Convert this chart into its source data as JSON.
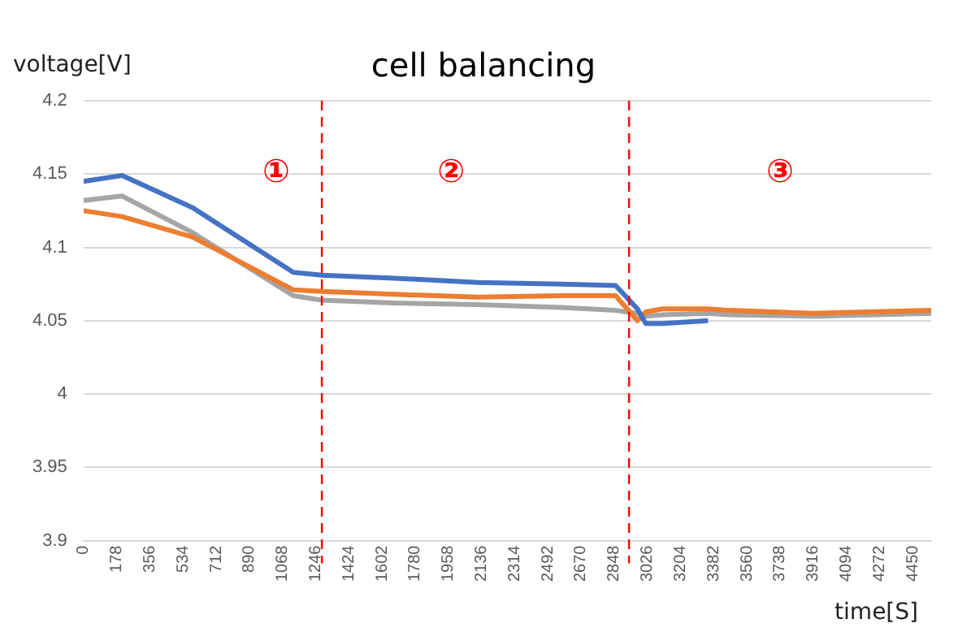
{
  "chart_data": {
    "type": "line",
    "title": "cell balancing",
    "xlabel": "time[S]",
    "ylabel": "voltage[V]",
    "x": [
      0,
      207,
      586,
      1126,
      1279,
      1667,
      2117,
      2568,
      2856,
      2973,
      3018,
      3108,
      3352,
      3469,
      3919,
      4550
    ],
    "series": [
      {
        "color": "#4472c4",
        "values": [
          4.145,
          4.149,
          4.127,
          4.083,
          4.081,
          4.079,
          4.076,
          4.075,
          4.074,
          4.058,
          4.048,
          4.048,
          4.05,
          null,
          null,
          null
        ]
      },
      {
        "color": "#ed7d31",
        "values": [
          4.125,
          4.121,
          4.107,
          4.071,
          4.07,
          4.068,
          4.066,
          4.067,
          4.067,
          4.05,
          4.056,
          4.058,
          4.058,
          4.057,
          4.055,
          4.057
        ]
      },
      {
        "color": "#a5a5a5",
        "values": [
          4.132,
          4.135,
          4.11,
          4.067,
          4.064,
          4.062,
          4.061,
          4.059,
          4.057,
          4.055,
          4.053,
          4.054,
          4.055,
          4.054,
          4.053,
          4.055
        ]
      }
    ],
    "xlim": [
      0,
      4550
    ],
    "xticks": [
      0,
      178,
      356,
      534,
      712,
      890,
      1068,
      1246,
      1424,
      1602,
      1780,
      1958,
      2136,
      2314,
      2492,
      2670,
      2848,
      3026,
      3204,
      3382,
      3560,
      3738,
      3916,
      4094,
      4272,
      4450
    ],
    "ylim": [
      3.9,
      4.2
    ],
    "yticks": [
      {
        "value": 3.9,
        "label": "3.9"
      },
      {
        "value": 3.95,
        "label": "3.95"
      },
      {
        "value": 4,
        "label": "4"
      },
      {
        "value": 4.05,
        "label": "4.05"
      },
      {
        "value": 4.1,
        "label": "4.1"
      },
      {
        "value": 4.15,
        "label": "4.15"
      },
      {
        "value": 4.2,
        "label": "4.2"
      }
    ],
    "ref_lines": [
      {
        "axis": "x",
        "value": 1279,
        "color": "#ff0000",
        "line_style": "dashed"
      },
      {
        "axis": "x",
        "value": 2928,
        "color": "#ff0000",
        "line_style": "dashed"
      }
    ],
    "annotations": [
      "①",
      "②",
      "③"
    ],
    "grid": "y",
    "legend": false,
    "marker": "none",
    "line_style": "solid"
  }
}
